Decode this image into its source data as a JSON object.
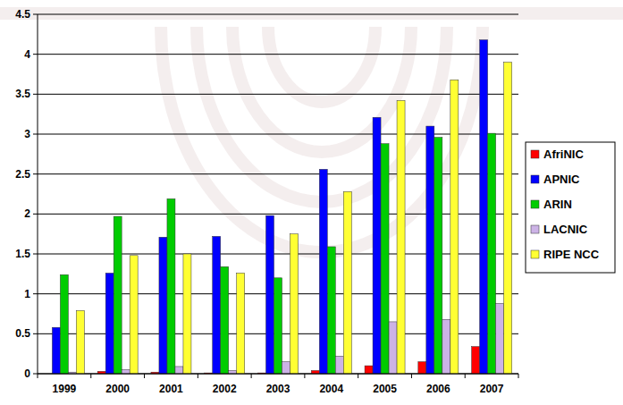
{
  "chart_data": {
    "type": "bar",
    "categories": [
      "1999",
      "2000",
      "2001",
      "2002",
      "2003",
      "2004",
      "2005",
      "2006",
      "2007"
    ],
    "series": [
      {
        "name": "AfriNIC",
        "color": "#ff0000",
        "values": [
          0,
          0.03,
          0.02,
          0.01,
          0.01,
          0.04,
          0.1,
          0.15,
          0.34
        ]
      },
      {
        "name": "APNIC",
        "color": "#0000ff",
        "values": [
          0.58,
          1.26,
          1.71,
          1.72,
          1.98,
          2.56,
          3.21,
          3.1,
          4.18
        ]
      },
      {
        "name": "ARIN",
        "color": "#00cc00",
        "values": [
          1.24,
          1.97,
          2.19,
          1.34,
          1.2,
          1.59,
          2.88,
          2.96,
          3.01
        ]
      },
      {
        "name": "LACNIC",
        "color": "#ccb3e6",
        "values": [
          0.02,
          0.05,
          0.09,
          0.04,
          0.15,
          0.22,
          0.65,
          0.68,
          0.88
        ]
      },
      {
        "name": "RIPE NCC",
        "color": "#ffff33",
        "values": [
          0.79,
          1.48,
          1.5,
          1.26,
          1.75,
          2.28,
          3.42,
          3.68,
          3.9
        ]
      }
    ],
    "ylim": [
      0,
      4.5
    ],
    "yticks": [
      0,
      0.5,
      1,
      1.5,
      2,
      2.5,
      3,
      3.5,
      4,
      4.5
    ],
    "grid": true,
    "legend": "right"
  }
}
